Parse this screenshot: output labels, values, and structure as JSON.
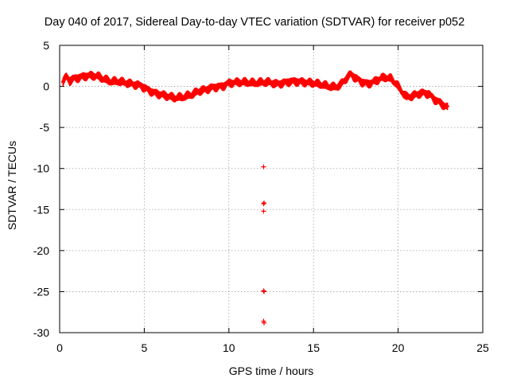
{
  "chart_data": {
    "type": "scatter",
    "title": "Day 040 of 2017, Sidereal Day-to-day VTEC variation (SDTVAR) for receiver p052",
    "xlabel": "GPS time / hours",
    "ylabel": "SDTVAR / TECUs",
    "xlim": [
      0,
      25
    ],
    "ylim": [
      -30,
      5
    ],
    "xticks": [
      0,
      5,
      10,
      15,
      20,
      25
    ],
    "yticks": [
      5,
      0,
      -5,
      -10,
      -15,
      -20,
      -25,
      -30
    ],
    "grid": true,
    "marker": "+",
    "series_color": "#ff0000",
    "series": [
      {
        "name": "SDTVAR",
        "trace": [
          [
            0.2,
            0.6
          ],
          [
            0.4,
            1.2
          ],
          [
            0.6,
            0.7
          ],
          [
            0.9,
            1.0
          ],
          [
            1.2,
            1.1
          ],
          [
            1.6,
            1.3
          ],
          [
            2.0,
            1.3
          ],
          [
            2.3,
            1.2
          ],
          [
            2.6,
            0.9
          ],
          [
            3.0,
            0.6
          ],
          [
            3.5,
            0.6
          ],
          [
            4.0,
            0.4
          ],
          [
            4.5,
            0.2
          ],
          [
            4.8,
            0.1
          ],
          [
            5.1,
            -0.3
          ],
          [
            5.6,
            -0.8
          ],
          [
            6.2,
            -1.1
          ],
          [
            6.8,
            -1.4
          ],
          [
            7.3,
            -1.3
          ],
          [
            7.8,
            -1.0
          ],
          [
            8.2,
            -0.6
          ],
          [
            8.6,
            -0.4
          ],
          [
            9.1,
            -0.1
          ],
          [
            9.6,
            0.0
          ],
          [
            10.0,
            0.4
          ],
          [
            10.5,
            0.5
          ],
          [
            11.0,
            0.5
          ],
          [
            11.5,
            0.4
          ],
          [
            12.0,
            0.5
          ],
          [
            12.4,
            0.5
          ],
          [
            12.8,
            0.3
          ],
          [
            13.2,
            0.4
          ],
          [
            13.6,
            0.6
          ],
          [
            14.0,
            0.6
          ],
          [
            14.5,
            0.5
          ],
          [
            15.0,
            0.4
          ],
          [
            15.5,
            0.2
          ],
          [
            15.9,
            0.0
          ],
          [
            16.3,
            -0.1
          ],
          [
            16.6,
            0.2
          ],
          [
            16.9,
            0.9
          ],
          [
            17.2,
            1.5
          ],
          [
            17.5,
            1.0
          ],
          [
            17.8,
            0.6
          ],
          [
            18.2,
            0.3
          ],
          [
            18.6,
            0.6
          ],
          [
            19.0,
            1.0
          ],
          [
            19.3,
            1.1
          ],
          [
            19.6,
            0.9
          ],
          [
            19.9,
            0.3
          ],
          [
            20.2,
            -0.6
          ],
          [
            20.5,
            -1.3
          ],
          [
            20.8,
            -1.2
          ],
          [
            21.2,
            -0.9
          ],
          [
            21.5,
            -0.8
          ],
          [
            21.8,
            -0.9
          ],
          [
            22.1,
            -1.5
          ],
          [
            22.4,
            -1.9
          ],
          [
            22.7,
            -2.3
          ],
          [
            22.95,
            -2.6
          ]
        ],
        "outliers": [
          [
            12.05,
            -9.8
          ],
          [
            12.05,
            -14.3
          ],
          [
            12.08,
            -14.2
          ],
          [
            12.05,
            -15.2
          ],
          [
            12.05,
            -24.9
          ],
          [
            12.08,
            -25.0
          ],
          [
            12.05,
            -28.6
          ],
          [
            12.08,
            -28.8
          ]
        ]
      }
    ]
  }
}
